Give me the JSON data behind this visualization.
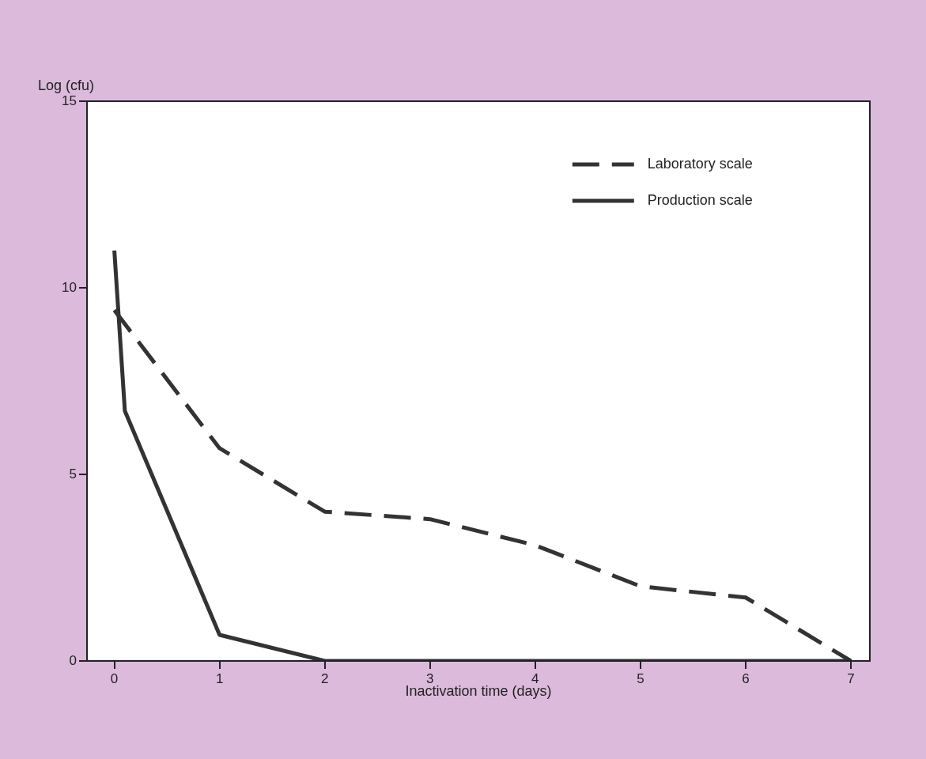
{
  "chart_data": {
    "type": "line",
    "ylabel": "Log (cfu)",
    "xlabel": "Inactivation time (days)",
    "xlim": [
      -0.26,
      7.18
    ],
    "xticks": [
      0,
      1,
      2,
      3,
      4,
      5,
      6,
      7
    ],
    "ylim": [
      0,
      15
    ],
    "yticks": [
      0,
      5,
      10,
      15
    ],
    "legend": "top right",
    "series": [
      {
        "name": "Laboratory scale",
        "color": "#333333",
        "line_style": "dashed",
        "x": [
          0,
          1,
          2,
          3,
          4,
          5,
          6,
          7
        ],
        "values": [
          9.4,
          5.7,
          4.0,
          3.8,
          3.1,
          2.0,
          1.7,
          0
        ]
      },
      {
        "name": "Production scale",
        "color": "#333333",
        "line_style": "solid",
        "x": [
          0,
          0.1,
          1,
          2,
          3,
          4,
          5,
          6,
          7
        ],
        "values": [
          11,
          6.7,
          0.7,
          0,
          0,
          0,
          0,
          0,
          0
        ]
      }
    ]
  }
}
